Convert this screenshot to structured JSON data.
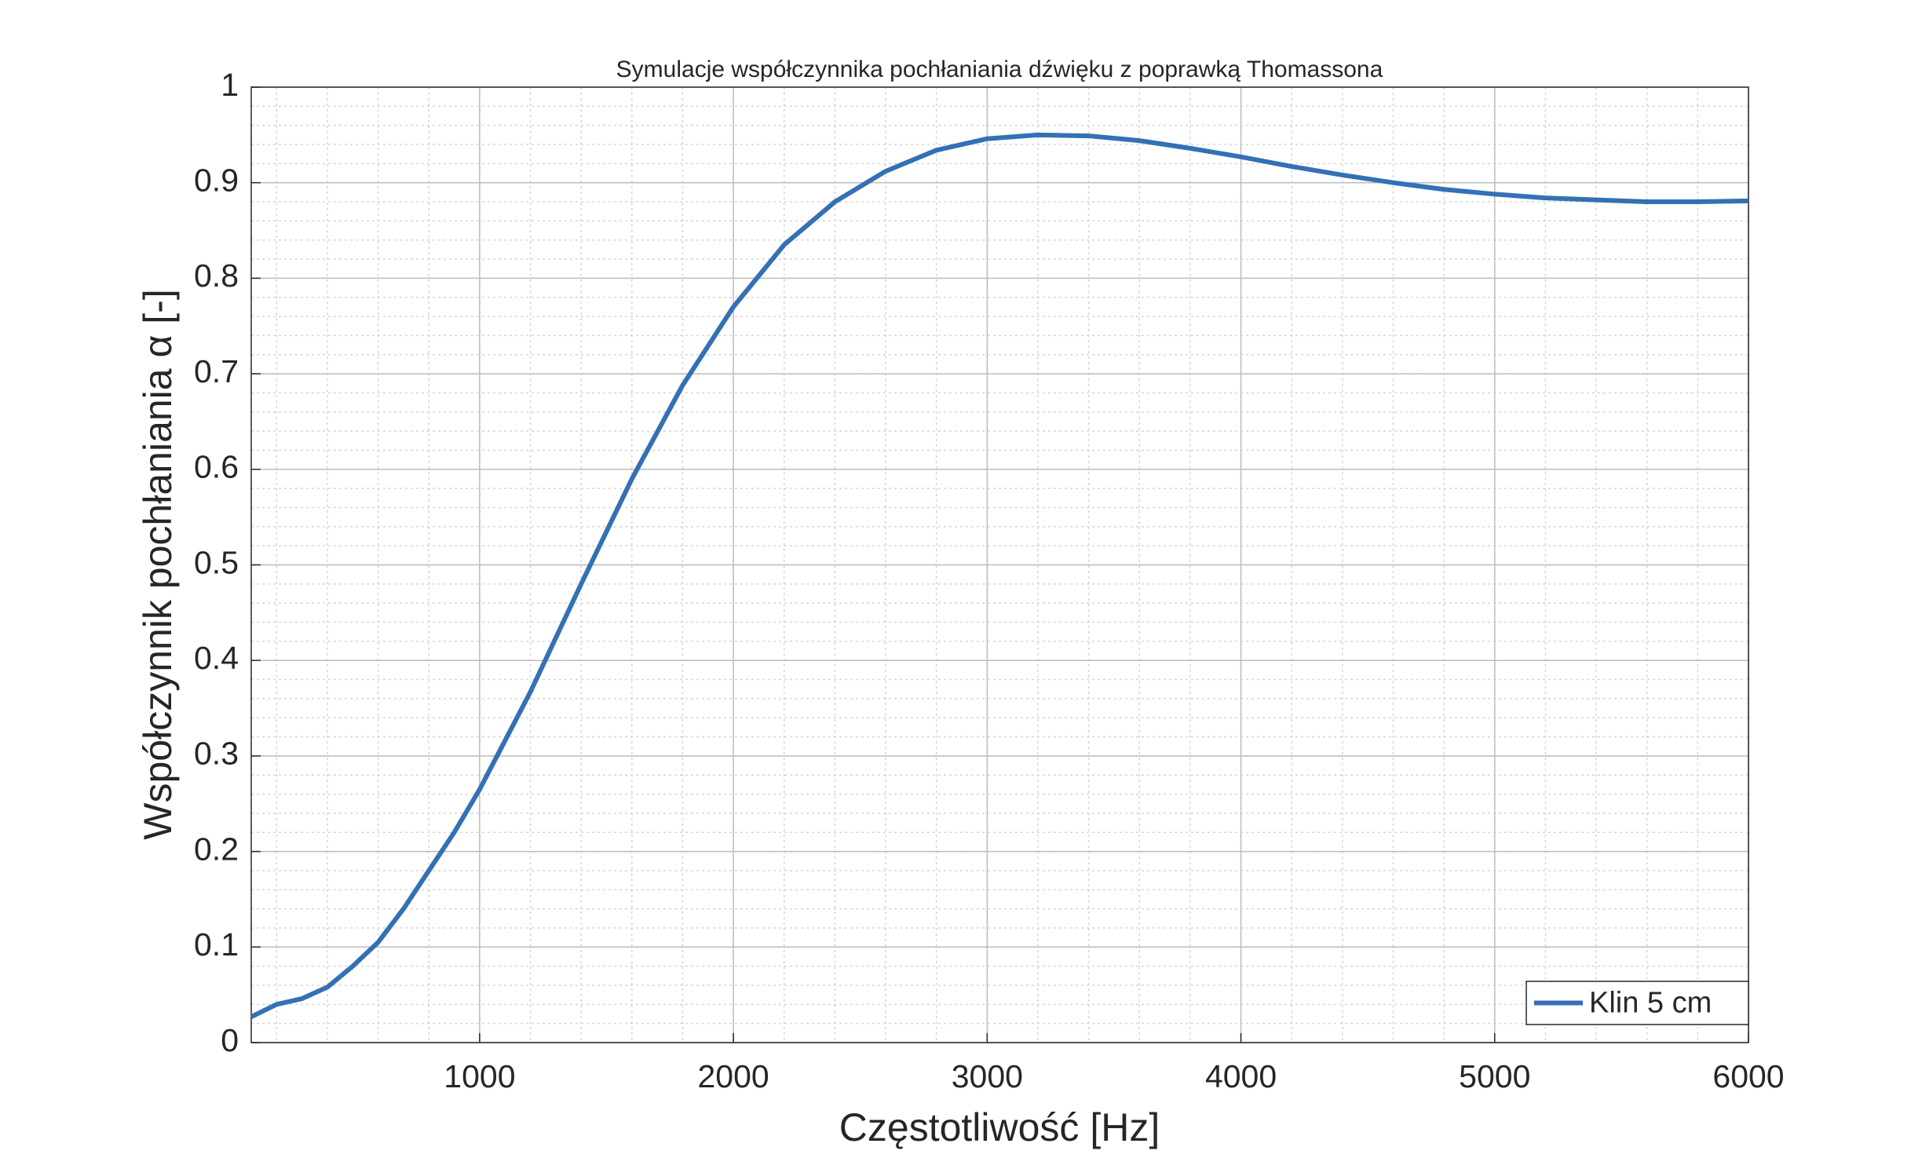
{
  "chart_data": {
    "type": "line",
    "title": "Symulacje współczynnika pochłaniania dźwięku z poprawką Thomassona",
    "x_label": "Częstotliwość [Hz]",
    "y_label": "Współczynnik pochłaniania α [-]",
    "x": [
      100,
      200,
      300,
      400,
      500,
      600,
      700,
      800,
      900,
      1000,
      1200,
      1400,
      1600,
      1800,
      2000,
      2200,
      2400,
      2600,
      2800,
      3000,
      3200,
      3400,
      3600,
      3800,
      4000,
      4200,
      4400,
      4600,
      4800,
      5000,
      5200,
      5400,
      5600,
      5800,
      6000
    ],
    "series": [
      {
        "name": "Klin 5 cm",
        "color": "#3470b4",
        "values": [
          0.027,
          0.04,
          0.046,
          0.058,
          0.08,
          0.105,
          0.14,
          0.18,
          0.22,
          0.265,
          0.367,
          0.48,
          0.59,
          0.688,
          0.77,
          0.835,
          0.88,
          0.912,
          0.934,
          0.946,
          0.95,
          0.949,
          0.944,
          0.936,
          0.927,
          0.917,
          0.908,
          0.9,
          0.893,
          0.888,
          0.884,
          0.882,
          0.88,
          0.88,
          0.881
        ]
      }
    ],
    "xlim": [
      100,
      6000
    ],
    "xticks": [
      1000,
      2000,
      3000,
      4000,
      5000,
      6000
    ],
    "ylim": [
      0,
      1
    ],
    "yticks": [
      0,
      0.1,
      0.2,
      0.3,
      0.4,
      0.5,
      0.6,
      0.7,
      0.8,
      0.9,
      1
    ],
    "grid": true,
    "minor_grid": true,
    "legend": "lower right"
  }
}
